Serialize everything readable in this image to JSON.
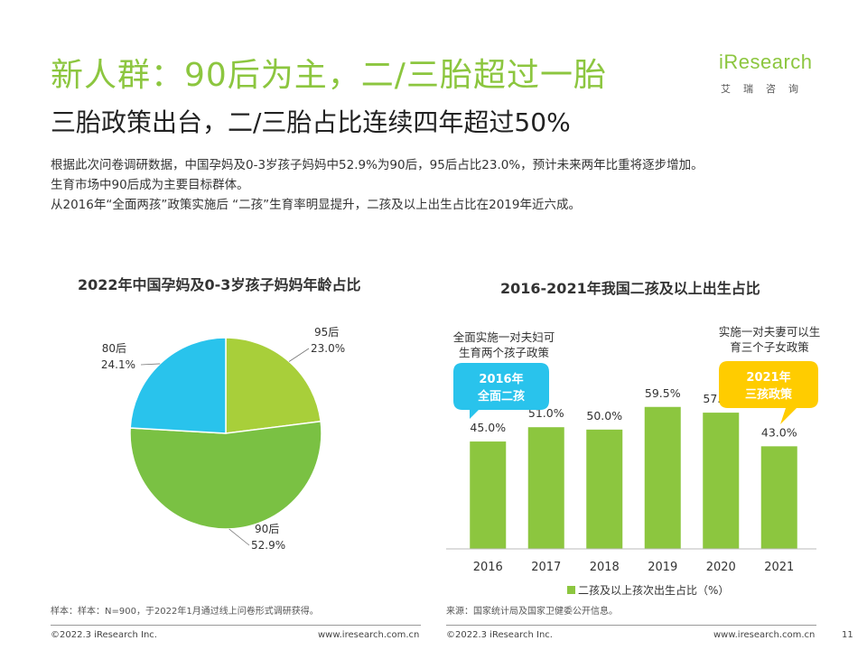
{
  "header": {
    "title": "新人群：90后为主，二/三胎超过一胎",
    "subtitle": "三胎政策出台，二/三胎占比连续四年超过50%"
  },
  "logo": {
    "text": "iResearch",
    "cn": "艾瑞咨询"
  },
  "description": [
    "根据此次问卷调研数据，中国孕妈及0-3岁孩子妈妈中52.9%为90后，95后占比23.0%，预计未来两年比重将逐步增加。",
    "生育市场中90后成为主要目标群体。",
    "从2016年“全面两孩”政策实施后 “二孩”生育率明显提升，二孩及以上出生占比在2019年近六成。"
  ],
  "colors": {
    "green": "#8cc63f",
    "blue": "#29c3ec",
    "yellow": "#ffcc00"
  },
  "chart_data": [
    {
      "type": "pie",
      "title": "2022年中国孕妈及0-3岁孩子妈妈年龄占比",
      "categories": [
        "95后",
        "90后",
        "80后"
      ],
      "values": [
        23.0,
        52.9,
        24.1
      ],
      "value_labels": [
        "23.0%",
        "52.9%",
        "24.1%"
      ],
      "colors": [
        "#a8cf3a",
        "#7ac143",
        "#29c3ec"
      ]
    },
    {
      "type": "bar",
      "title": "2016-2021年我国二孩及以上出生占比",
      "categories": [
        "2016",
        "2017",
        "2018",
        "2019",
        "2020",
        "2021"
      ],
      "series": [
        {
          "name": "二孩及以上孩次出生占比（%）",
          "values": [
            45.0,
            51.0,
            50.0,
            59.5,
            57.1,
            43.0
          ]
        }
      ],
      "value_labels": [
        "45.0%",
        "51.0%",
        "50.0%",
        "59.5%",
        "57.1%",
        "43.0%"
      ],
      "ylim": [
        0,
        70
      ],
      "legend": "bottom",
      "annotations": [
        {
          "note": "全面实施一对夫妇可 生育两个孩子政策",
          "badge": "2016年 全面二孩"
        },
        {
          "note": "实施一对夫妻可以生 育三个子女政策",
          "badge": "2021年 三孩政策"
        }
      ]
    }
  ],
  "footer": {
    "left_sample": "样本：样本：N=900，于2022年1月通过线上问卷形式调研获得。",
    "right_source": "来源：国家统计局及国家卫健委公开信息。",
    "copyright_left": "©2022.3 iResearch Inc.",
    "url_left": "www.iresearch.com.cn",
    "copyright_right": "©2022.3 iResearch Inc.",
    "url_right": "www.iresearch.com.cn",
    "page_number": "11"
  }
}
